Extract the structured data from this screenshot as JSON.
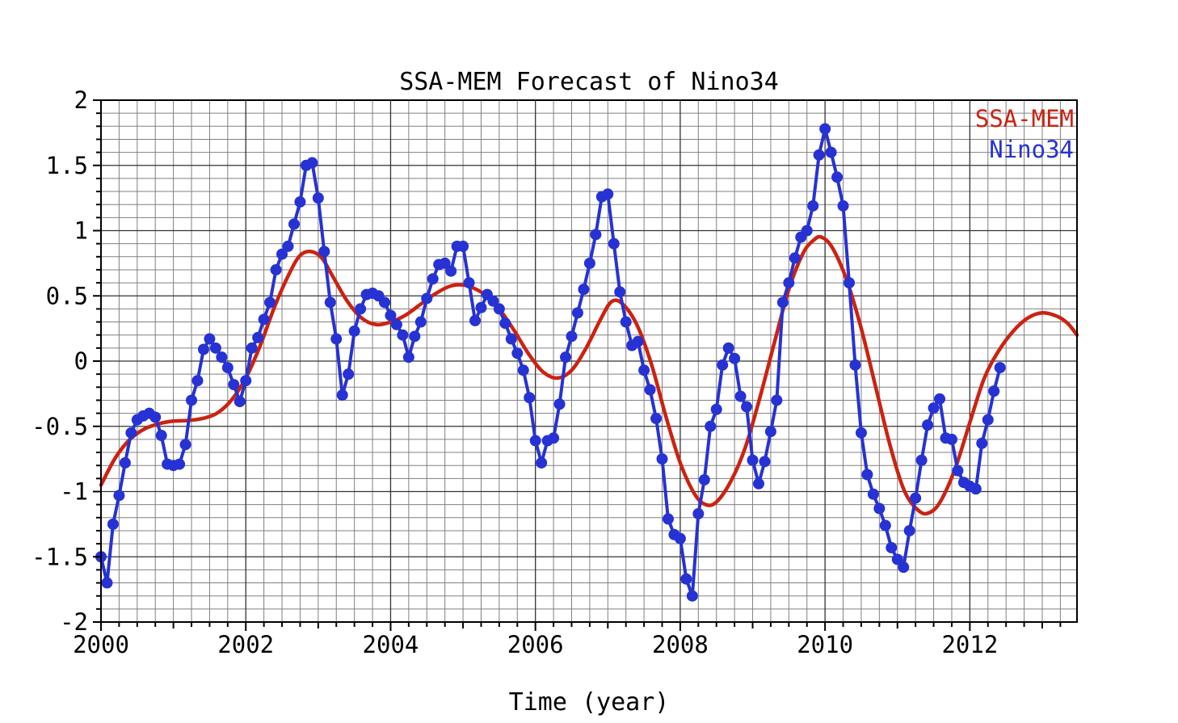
{
  "title": "SSA-MEM Forecast of Nino34",
  "x_axis_label": "Time (year)",
  "legend": {
    "position": "top-right-inside",
    "items": [
      {
        "label": "SSA-MEM",
        "color": "#cc2211"
      },
      {
        "label": "Nino34",
        "color": "#2632d4"
      }
    ]
  },
  "chart_data": {
    "type": "line",
    "title": "SSA-MEM Forecast of Nino34",
    "xlabel": "Time (year)",
    "ylabel": "",
    "xlim": [
      2000,
      2013.48
    ],
    "ylim": [
      -2,
      2
    ],
    "x_major_ticks": [
      2000,
      2002,
      2004,
      2006,
      2008,
      2010,
      2012
    ],
    "x_minor_step": 0.25,
    "y_major_step": 0.5,
    "y_minor_step": 0.1,
    "y_major_tick_labels": [
      "-2",
      "-1.5",
      "-1",
      "-0.5",
      "0",
      "0.5",
      "1",
      "1.5",
      "2"
    ],
    "grid": true,
    "grid_minor_color": "#808080",
    "grid_major_color": "#333333",
    "axis_color": "#000000",
    "background": "#ffffff",
    "legend_position": "top-right-inside",
    "series": [
      {
        "name": "SSA-MEM",
        "type": "smooth-line",
        "color": "#cc2211",
        "line_width": 4.5,
        "points": [
          [
            2000.0,
            -0.95
          ],
          [
            2000.2,
            -0.74
          ],
          [
            2000.4,
            -0.6
          ],
          [
            2000.6,
            -0.52
          ],
          [
            2000.8,
            -0.48
          ],
          [
            2001.0,
            -0.46
          ],
          [
            2001.2,
            -0.455
          ],
          [
            2001.4,
            -0.44
          ],
          [
            2001.6,
            -0.4
          ],
          [
            2001.8,
            -0.3
          ],
          [
            2002.0,
            -0.13
          ],
          [
            2002.2,
            0.12
          ],
          [
            2002.4,
            0.42
          ],
          [
            2002.6,
            0.67
          ],
          [
            2002.75,
            0.81
          ],
          [
            2002.9,
            0.84
          ],
          [
            2003.05,
            0.79
          ],
          [
            2003.2,
            0.65
          ],
          [
            2003.4,
            0.46
          ],
          [
            2003.6,
            0.33
          ],
          [
            2003.8,
            0.28
          ],
          [
            2004.0,
            0.3
          ],
          [
            2004.2,
            0.35
          ],
          [
            2004.4,
            0.43
          ],
          [
            2004.6,
            0.51
          ],
          [
            2004.8,
            0.57
          ],
          [
            2004.95,
            0.585
          ],
          [
            2005.1,
            0.57
          ],
          [
            2005.3,
            0.51
          ],
          [
            2005.5,
            0.4
          ],
          [
            2005.7,
            0.24
          ],
          [
            2005.9,
            0.06
          ],
          [
            2006.1,
            -0.08
          ],
          [
            2006.3,
            -0.13
          ],
          [
            2006.5,
            -0.07
          ],
          [
            2006.7,
            0.1
          ],
          [
            2006.9,
            0.32
          ],
          [
            2007.05,
            0.455
          ],
          [
            2007.2,
            0.44
          ],
          [
            2007.4,
            0.28
          ],
          [
            2007.6,
            -0.02
          ],
          [
            2007.8,
            -0.42
          ],
          [
            2008.0,
            -0.78
          ],
          [
            2008.2,
            -1.02
          ],
          [
            2008.35,
            -1.1
          ],
          [
            2008.5,
            -1.08
          ],
          [
            2008.7,
            -0.92
          ],
          [
            2008.9,
            -0.66
          ],
          [
            2009.1,
            -0.28
          ],
          [
            2009.3,
            0.14
          ],
          [
            2009.5,
            0.55
          ],
          [
            2009.7,
            0.83
          ],
          [
            2009.85,
            0.93
          ],
          [
            2009.95,
            0.95
          ],
          [
            2010.1,
            0.87
          ],
          [
            2010.3,
            0.62
          ],
          [
            2010.5,
            0.25
          ],
          [
            2010.7,
            -0.2
          ],
          [
            2010.9,
            -0.65
          ],
          [
            2011.1,
            -1.0
          ],
          [
            2011.3,
            -1.15
          ],
          [
            2011.45,
            -1.16
          ],
          [
            2011.6,
            -1.07
          ],
          [
            2011.8,
            -0.82
          ],
          [
            2012.0,
            -0.47
          ],
          [
            2012.2,
            -0.13
          ],
          [
            2012.4,
            0.08
          ],
          [
            2012.6,
            0.23
          ],
          [
            2012.8,
            0.33
          ],
          [
            2013.0,
            0.37
          ],
          [
            2013.2,
            0.345
          ],
          [
            2013.35,
            0.29
          ],
          [
            2013.48,
            0.2
          ]
        ]
      },
      {
        "name": "Nino34",
        "type": "line-markers",
        "color": "#2632d4",
        "line_width": 4,
        "marker_radius": 7,
        "x_start": 2000.0,
        "x_step_years": 0.0833333,
        "values": [
          -1.5,
          -1.7,
          -1.25,
          -1.03,
          -0.78,
          -0.55,
          -0.45,
          -0.42,
          -0.4,
          -0.43,
          -0.57,
          -0.79,
          -0.8,
          -0.79,
          -0.64,
          -0.3,
          -0.15,
          0.09,
          0.17,
          0.1,
          0.03,
          -0.05,
          -0.18,
          -0.31,
          -0.15,
          0.1,
          0.18,
          0.32,
          0.45,
          0.7,
          0.82,
          0.88,
          1.05,
          1.22,
          1.5,
          1.52,
          1.25,
          0.84,
          0.45,
          0.17,
          -0.26,
          -0.1,
          0.23,
          0.4,
          0.51,
          0.52,
          0.5,
          0.45,
          0.35,
          0.28,
          0.2,
          0.03,
          0.19,
          0.3,
          0.48,
          0.63,
          0.74,
          0.75,
          0.69,
          0.88,
          0.88,
          0.6,
          0.31,
          0.41,
          0.51,
          0.46,
          0.4,
          0.29,
          0.17,
          0.06,
          -0.07,
          -0.28,
          -0.61,
          -0.78,
          -0.61,
          -0.59,
          -0.33,
          0.03,
          0.19,
          0.37,
          0.55,
          0.75,
          0.97,
          1.26,
          1.28,
          0.9,
          0.53,
          0.3,
          0.12,
          0.15,
          -0.07,
          -0.22,
          -0.44,
          -0.75,
          -1.21,
          -1.33,
          -1.36,
          -1.67,
          -1.8,
          -1.17,
          -0.91,
          -0.5,
          -0.37,
          -0.03,
          0.1,
          0.02,
          -0.27,
          -0.35,
          -0.76,
          -0.94,
          -0.77,
          -0.54,
          -0.3,
          0.45,
          0.6,
          0.79,
          0.95,
          1.0,
          1.19,
          1.58,
          1.78,
          1.6,
          1.41,
          1.19,
          0.6,
          -0.03,
          -0.55,
          -0.87,
          -1.02,
          -1.13,
          -1.26,
          -1.43,
          -1.52,
          -1.58,
          -1.3,
          -1.05,
          -0.76,
          -0.49,
          -0.36,
          -0.29,
          -0.59,
          -0.6,
          -0.84,
          -0.93,
          -0.96,
          -0.98,
          -0.63,
          -0.45,
          -0.23,
          -0.05
        ]
      }
    ]
  }
}
